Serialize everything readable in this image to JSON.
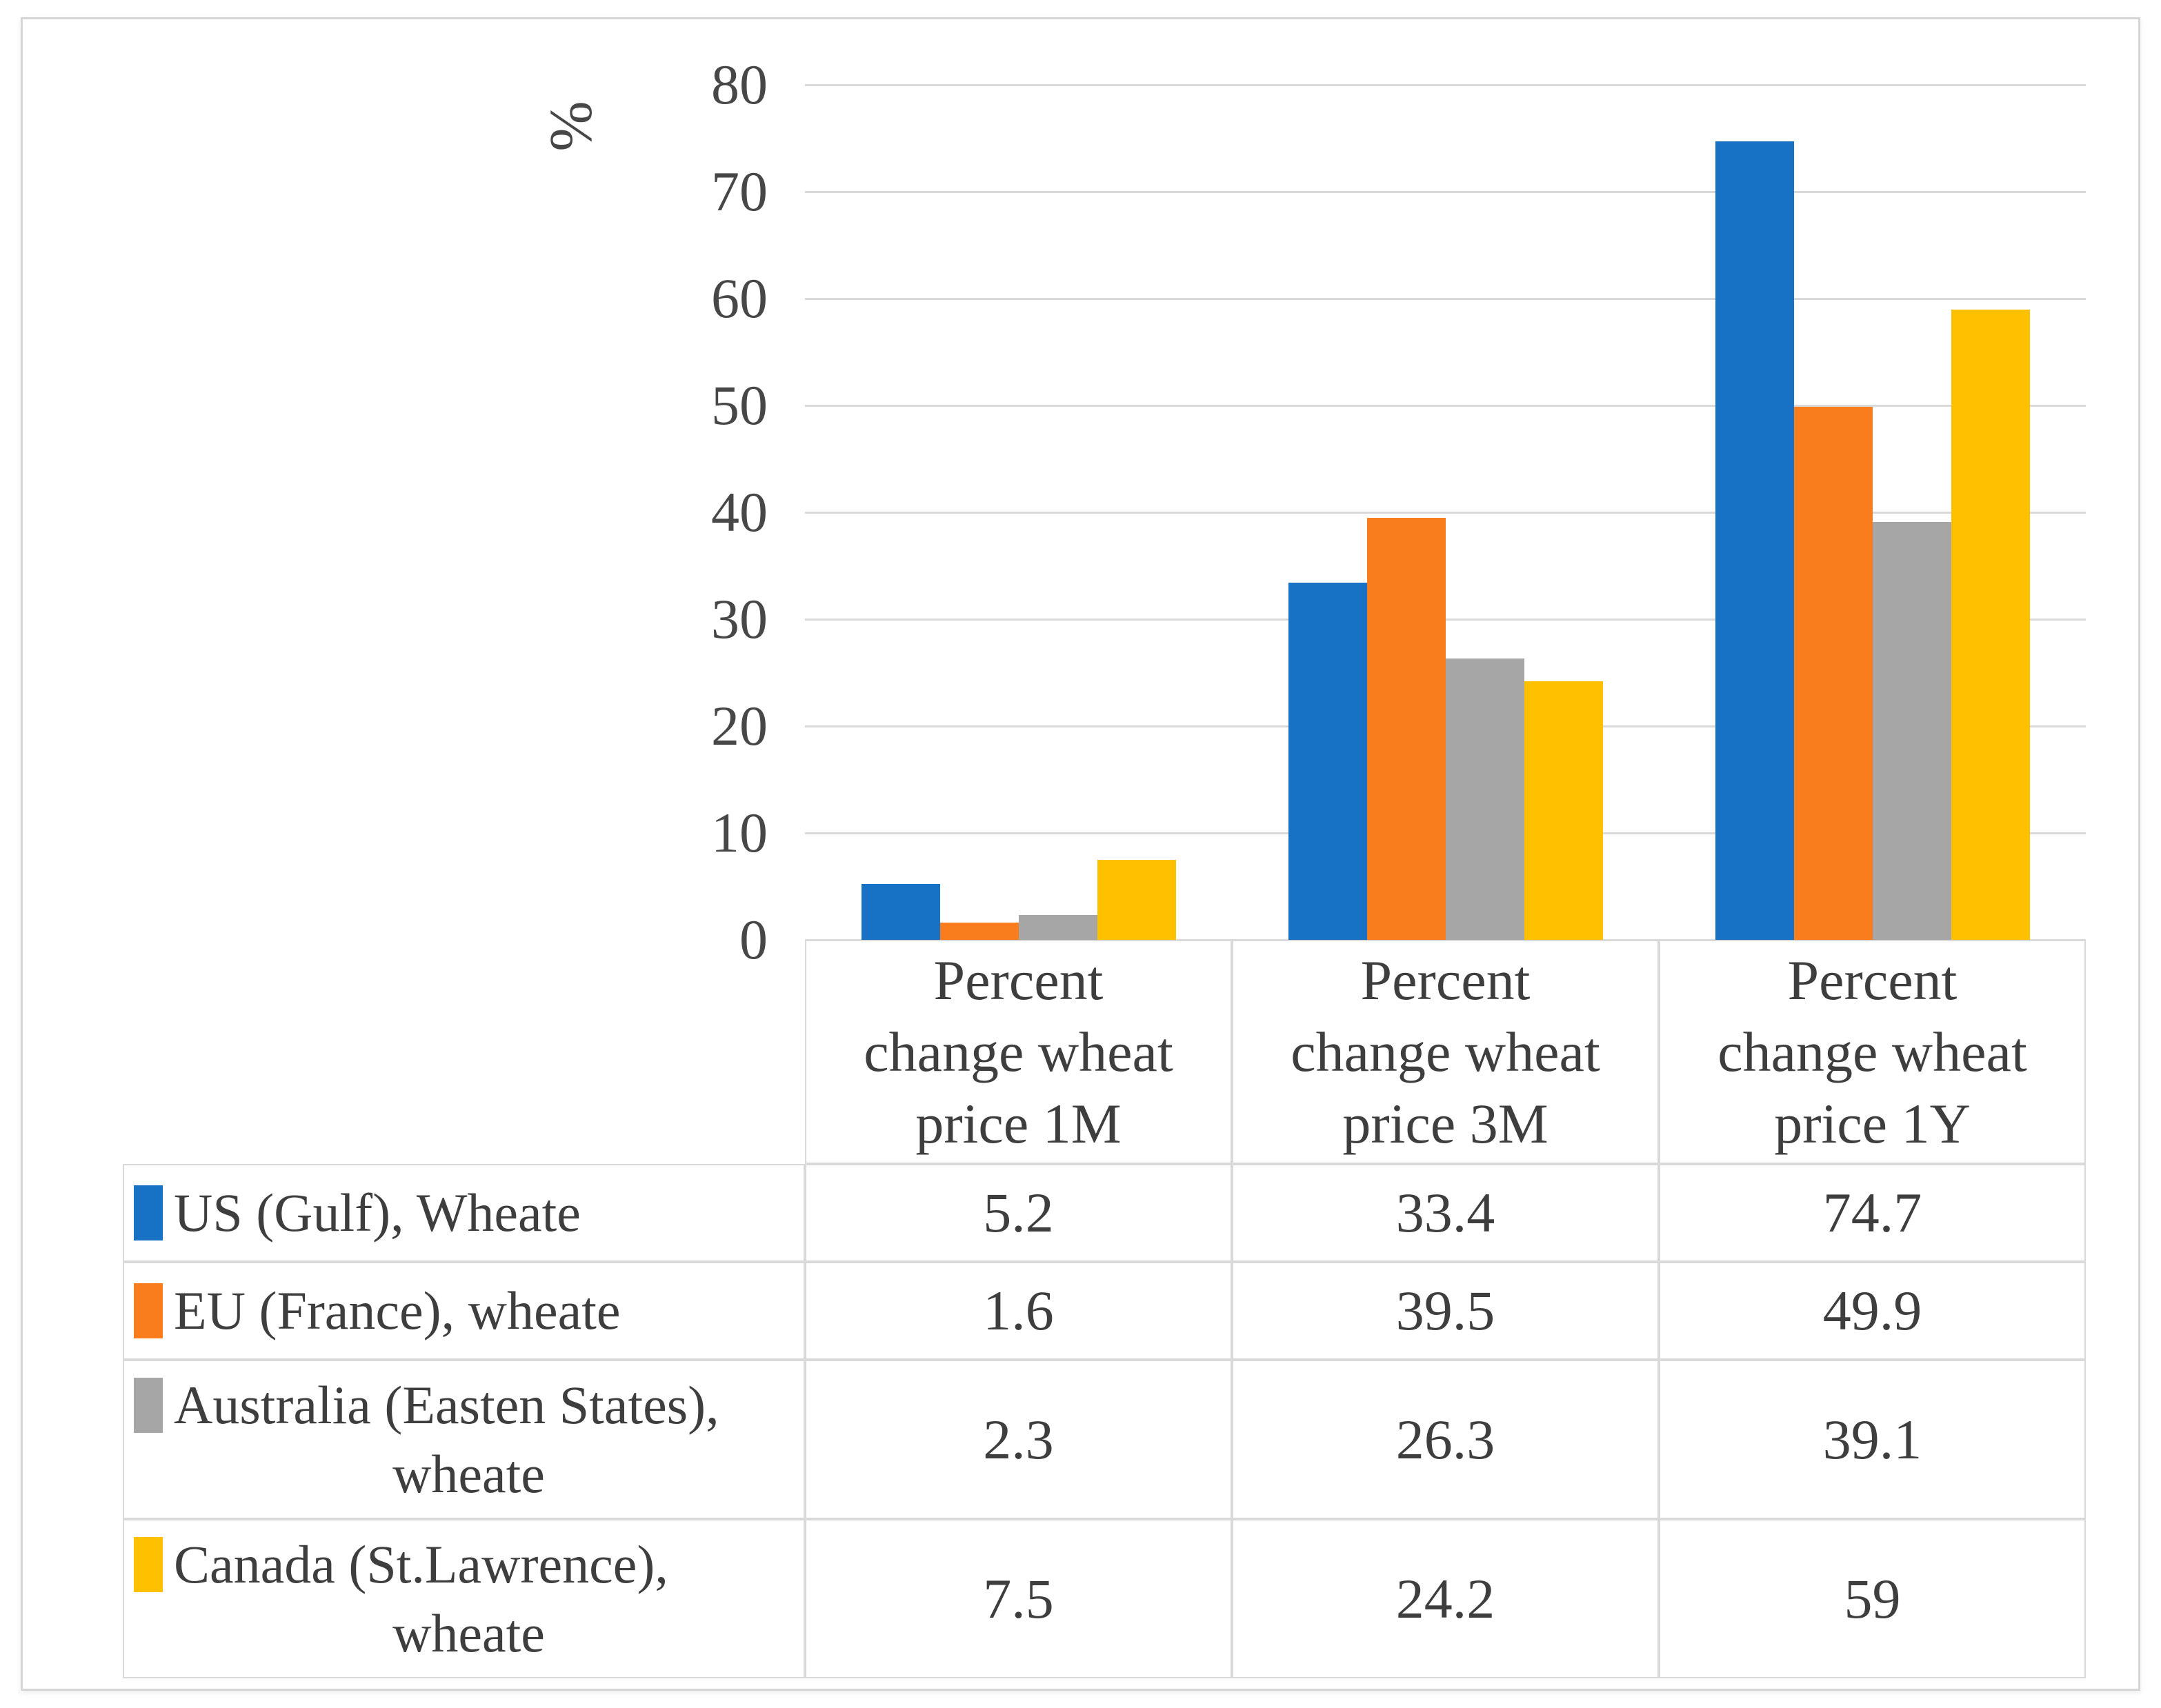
{
  "figure": {
    "background": "#FFFFFF",
    "border_color": "#D6D6D6"
  },
  "chart": {
    "y_axis_title": "%"
  },
  "chart_data": {
    "type": "bar",
    "title": "",
    "xlabel": "",
    "ylabel": "%",
    "categories": [
      "Percent change wheat price 1M",
      "Percent change wheat price 3M",
      "Percent change wheat price 1Y"
    ],
    "series": [
      {
        "name": "US (Gulf), Wheate",
        "color": "#1772C6",
        "values": [
          5.2,
          33.4,
          74.7
        ]
      },
      {
        "name": "EU (France), wheate",
        "color": "#F97D1C",
        "values": [
          1.6,
          39.5,
          49.9
        ]
      },
      {
        "name": "Australia (Easten States), wheate",
        "color": "#A6A6A6",
        "values": [
          2.3,
          26.3,
          39.1
        ]
      },
      {
        "name": "Canada (St.Lawrence), wheate",
        "color": "#FFC000",
        "values": [
          7.5,
          24.2,
          59
        ]
      }
    ],
    "ylim": [
      0,
      80
    ],
    "yticks": [
      0,
      10,
      20,
      30,
      40,
      50,
      60,
      70,
      80
    ],
    "grid": true,
    "gridline_color": "#D9D9D9",
    "legend_position": "data-table-below-chart"
  },
  "table": {
    "col_headers": [
      [
        "Percent",
        "change wheat",
        "price 1M"
      ],
      [
        "Percent",
        "change wheat",
        "price 3M"
      ],
      [
        "Percent",
        "change wheat",
        "price 1Y"
      ]
    ],
    "rows": [
      {
        "label_lines": [
          "US (Gulf), Wheate",
          ""
        ],
        "values": [
          "5.2",
          "33.4",
          "74.7"
        ]
      },
      {
        "label_lines": [
          "EU (France), wheate",
          ""
        ],
        "values": [
          "1.6",
          "39.5",
          "49.9"
        ]
      },
      {
        "label_lines": [
          "Australia (Easten States),",
          "wheate"
        ],
        "values": [
          "2.3",
          "26.3",
          "39.1"
        ]
      },
      {
        "label_lines": [
          "Canada (St.Lawrence),",
          "wheate"
        ],
        "values": [
          "7.5",
          "24.2",
          "59"
        ]
      }
    ]
  }
}
